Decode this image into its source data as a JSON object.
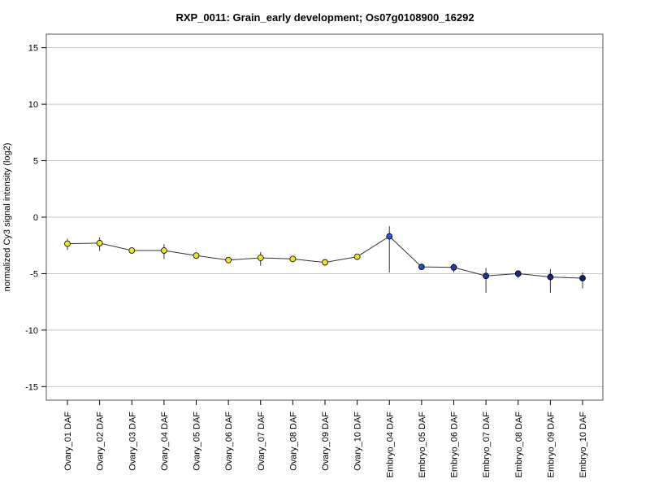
{
  "chart_data": {
    "type": "line",
    "title": "RXP_0011: Grain_early development; Os07g0108900_16292",
    "ylabel": "normalized Cy3 signal intensity (log2)",
    "xlabel": "",
    "ylim": [
      -16.2,
      16.2
    ],
    "yticks": [
      -15,
      -10,
      -5,
      0,
      5,
      10,
      15
    ],
    "grid": true,
    "categories": [
      "Ovary_01 DAF",
      "Ovary_02 DAF",
      "Ovary_03 DAF",
      "Ovary_04 DAF",
      "Ovary_05 DAF",
      "Ovary_06 DAF",
      "Ovary_07 DAF",
      "Ovary_08 DAF",
      "Ovary_09 DAF",
      "Ovary_10 DAF",
      "Embryo_04 DAF",
      "Embryo_05 DAF",
      "Embryo_06 DAF",
      "Embryo_07 DAF",
      "Embryo_08 DAF",
      "Embryo_09 DAF",
      "Embryo_10 DAF"
    ],
    "series": [
      {
        "values": [
          -2.35,
          -2.3,
          -2.95,
          -2.95,
          -3.4,
          -3.8,
          -3.6,
          -3.7,
          -4.0,
          -3.5,
          -1.7,
          -4.4,
          -4.45,
          -5.2,
          -5.0,
          -5.3,
          -5.4
        ],
        "err_low": [
          -2.9,
          -3.0,
          -3.0,
          -3.7,
          -3.7,
          -3.9,
          -4.3,
          -3.8,
          -4.1,
          -3.8,
          -4.9,
          -4.45,
          -4.9,
          -6.7,
          -5.4,
          -6.7,
          -6.3
        ],
        "err_high": [
          -1.9,
          -1.8,
          -2.85,
          -2.4,
          -3.15,
          -3.7,
          -3.1,
          -3.6,
          -3.9,
          -3.25,
          -0.8,
          -4.35,
          -4.1,
          -4.5,
          -4.7,
          -4.6,
          -4.9
        ],
        "point_colors": [
          "#f0e32a",
          "#f0e32a",
          "#f0e32a",
          "#f0e32a",
          "#f0e32a",
          "#f0e32a",
          "#f0e32a",
          "#f0e32a",
          "#f0e32a",
          "#f0e32a",
          "#2a58d4",
          "#2348bf",
          "#1f3ea8",
          "#1c3598",
          "#192d88",
          "#162578",
          "#142070"
        ]
      }
    ]
  }
}
